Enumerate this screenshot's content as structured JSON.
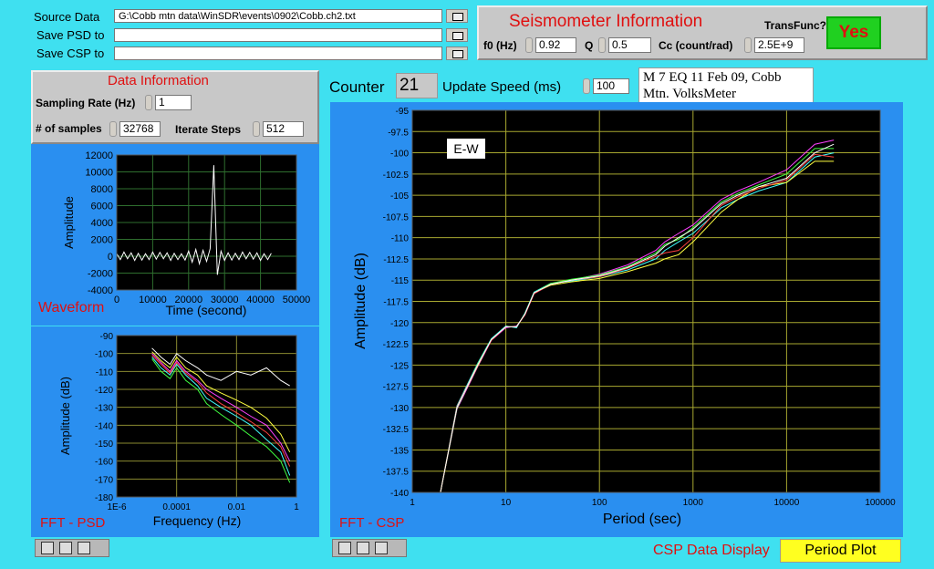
{
  "inputs": {
    "source_data": {
      "label": "Source Data",
      "value": "G:\\Cobb mtn data\\WinSDR\\events\\0902\\Cobb.ch2.txt"
    },
    "save_psd": {
      "label": "Save PSD to"
    },
    "save_csp": {
      "label": "Save CSP to"
    }
  },
  "seismometer": {
    "title": "Seismometer Information",
    "transfunc_label": "TransFunc?",
    "transfunc_value": "Yes",
    "f0": {
      "label": "f0 (Hz)",
      "value": 0.92
    },
    "q": {
      "label": "Q",
      "value": 0.5
    },
    "cc": {
      "label": "Cc (count/rad)",
      "value": "2.5E+9"
    }
  },
  "data_info": {
    "title": "Data Information",
    "sampling_rate": {
      "label": "Sampling Rate (Hz)",
      "value": 1
    },
    "samples": {
      "label": "# of samples",
      "value": 32768
    },
    "iterate": {
      "label": "Iterate Steps",
      "value": 512
    }
  },
  "counter": {
    "label": "Counter",
    "value": 21
  },
  "update_speed": {
    "label": "Update Speed (ms)",
    "value": 100
  },
  "note": "M 7 EQ 11 Feb 09, Cobb Mtn. VolksMeter",
  "csp_display": {
    "label": "CSP Data Display",
    "value": "Period Plot"
  },
  "chart_data": [
    {
      "type": "line",
      "title": "Waveform",
      "xlabel": "Time (second)",
      "ylabel": "Amplitude",
      "x": [
        0,
        1000,
        2000,
        3000,
        4000,
        5000,
        6000,
        7000,
        8000,
        9000,
        10000,
        11000,
        12000,
        13000,
        14000,
        15000,
        16000,
        17000,
        18000,
        19000,
        20000,
        21000,
        22000,
        23000,
        24000,
        25000,
        26000,
        27000,
        28000,
        29000,
        30000,
        31000,
        32000,
        33000,
        34000,
        35000,
        36000,
        37000,
        38000,
        39000,
        40000,
        41000,
        42000,
        43000
      ],
      "series": [
        {
          "color": "#ffffff",
          "values": [
            300,
            -400,
            500,
            -300,
            400,
            -500,
            350,
            -450,
            300,
            -400,
            500,
            -350,
            450,
            -300,
            400,
            -500,
            350,
            -400,
            300,
            -450,
            600,
            -700,
            800,
            -900,
            700,
            -600,
            900,
            10800,
            -2200,
            600,
            -500,
            400,
            -450,
            350,
            -400,
            500,
            -300,
            450,
            -350,
            400,
            -500,
            300,
            -400,
            350
          ]
        }
      ],
      "xlim": [
        0,
        50000
      ],
      "xticks": [
        0,
        10000,
        20000,
        30000,
        40000,
        50000
      ],
      "ylim": [
        -4000,
        12000
      ],
      "yticks": [
        -4000,
        -2000,
        0,
        2000,
        4000,
        6000,
        8000,
        10000,
        12000
      ],
      "log_x": false,
      "grid": true,
      "grid_color": "#2e6e2e"
    },
    {
      "type": "line",
      "title": "FFT - PSD",
      "xlabel": "Frequency (Hz)",
      "ylabel": "Amplitude (dB)",
      "x": [
        1.5e-05,
        3e-05,
        6e-05,
        0.0001,
        0.0002,
        0.0005,
        0.001,
        0.003,
        0.01,
        0.03,
        0.1,
        0.3,
        0.6
      ],
      "series": [
        {
          "color": "#ff40ff",
          "values": [
            -100,
            -105,
            -110,
            -104,
            -110,
            -115,
            -120,
            -125,
            -130,
            -135,
            -140,
            -150,
            -160
          ]
        },
        {
          "color": "#40ffff",
          "values": [
            -102,
            -108,
            -112,
            -106,
            -112,
            -118,
            -125,
            -130,
            -135,
            -140,
            -148,
            -155,
            -168
          ]
        },
        {
          "color": "#ffff40",
          "values": [
            -99,
            -104,
            -108,
            -102,
            -108,
            -112,
            -118,
            -122,
            -126,
            -130,
            -136,
            -145,
            -155
          ]
        },
        {
          "color": "#40ff40",
          "values": [
            -103,
            -110,
            -114,
            -108,
            -115,
            -120,
            -128,
            -134,
            -140,
            -146,
            -152,
            -160,
            -172
          ]
        },
        {
          "color": "#ff4040",
          "values": [
            -101,
            -106,
            -111,
            -105,
            -111,
            -116,
            -122,
            -128,
            -133,
            -138,
            -144,
            -152,
            -163
          ]
        },
        {
          "color": "#ffffff",
          "values": [
            -97,
            -102,
            -106,
            -100,
            -104,
            -108,
            -112,
            -115,
            -110,
            -112,
            -108,
            -115,
            -118
          ]
        }
      ],
      "xlim": [
        1e-06,
        1
      ],
      "xticks": [
        {
          "value": 1e-06,
          "label": "1E-6"
        },
        0.0001,
        0.01,
        1
      ],
      "ylim": [
        -180,
        -90
      ],
      "yticks": [
        -90,
        -100,
        -110,
        -120,
        -130,
        -140,
        -150,
        -160,
        -170,
        -180
      ],
      "log_x": true,
      "grid": true,
      "grid_color": "#8a8a30"
    },
    {
      "type": "line",
      "title": "FFT - CSP",
      "xlabel": "Period (sec)",
      "ylabel": "Amplitude (dB)",
      "annotation": "E-W",
      "x": [
        2,
        3,
        5,
        7,
        10,
        13,
        16,
        20,
        30,
        50,
        100,
        200,
        400,
        500,
        700,
        1000,
        2000,
        3000,
        5000,
        10000,
        20000,
        32000
      ],
      "series": [
        {
          "color": "#ff40ff",
          "values": [
            -140,
            -130.2,
            -125.2,
            -122.1,
            -120.6,
            -120.4,
            -119.1,
            -116.6,
            -115.5,
            -115,
            -114.3,
            -113.2,
            -111.5,
            -110.5,
            -109.5,
            -108.5,
            -105.5,
            -104.5,
            -103.5,
            -102,
            -99,
            -98.5
          ]
        },
        {
          "color": "#40ffff",
          "values": [
            -140,
            -129.8,
            -124.8,
            -121.9,
            -120.4,
            -120.6,
            -118.9,
            -116.4,
            -115.4,
            -115.1,
            -114.6,
            -113.8,
            -112.5,
            -111.5,
            -110.5,
            -109.5,
            -106.5,
            -105.5,
            -104.5,
            -103.5,
            -100.5,
            -100
          ]
        },
        {
          "color": "#ffff40",
          "values": [
            -140,
            -130,
            -125.1,
            -122,
            -120.5,
            -120.5,
            -119,
            -116.5,
            -115.6,
            -115.2,
            -114.8,
            -114,
            -113,
            -112.5,
            -112,
            -110.5,
            -107,
            -105.5,
            -104,
            -103.5,
            -101,
            -101
          ]
        },
        {
          "color": "#40ff40",
          "values": [
            -140,
            -130.1,
            -124.9,
            -122,
            -120.5,
            -120.5,
            -119,
            -116.5,
            -115.4,
            -114.9,
            -114.4,
            -113.4,
            -111.8,
            -110.8,
            -110.2,
            -108.8,
            -105.8,
            -104.8,
            -103.8,
            -102.5,
            -99.5,
            -99.5
          ]
        },
        {
          "color": "#ff4040",
          "values": [
            -140,
            -129.9,
            -125,
            -122.1,
            -120.5,
            -120.5,
            -119.1,
            -116.6,
            -115.5,
            -115,
            -114.6,
            -113.6,
            -112.2,
            -111.8,
            -111.5,
            -110,
            -106.2,
            -105.2,
            -104.2,
            -103.2,
            -100.2,
            -100.5
          ]
        },
        {
          "color": "#ffffff",
          "values": [
            -140,
            -130,
            -125,
            -122,
            -120.5,
            -120.5,
            -119,
            -116.5,
            -115.5,
            -115,
            -114.5,
            -113.5,
            -112,
            -111,
            -110,
            -109,
            -106,
            -105,
            -104,
            -103,
            -100,
            -99
          ]
        }
      ],
      "xlim": [
        1,
        100000
      ],
      "xticks": [
        1,
        10,
        100,
        1000,
        10000,
        100000
      ],
      "ylim": [
        -140,
        -95
      ],
      "yticks": [
        -95,
        -97.5,
        -100,
        -102.5,
        -105,
        -107.5,
        -110,
        -112.5,
        -115,
        -117.5,
        -120,
        -122.5,
        -125,
        -127.5,
        -130,
        -132.5,
        -135,
        -137.5,
        -140
      ],
      "log_x": true,
      "grid": true,
      "grid_color": "#a8a830"
    }
  ]
}
